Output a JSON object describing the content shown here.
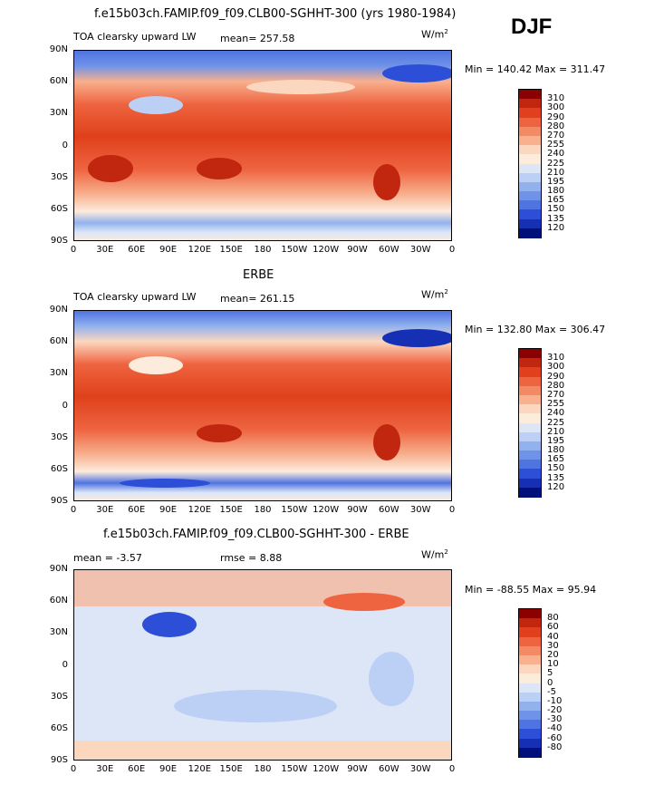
{
  "season": "DJF",
  "panels": [
    {
      "title": "f.e15b03ch.FAMIP.f09_f09.CLB00-SGHHT-300 (yrs 1980-1984)",
      "variable": "TOA clearsky upward LW",
      "stat_left": "mean=  257.58",
      "stat_mid": "",
      "units": "W/m",
      "units_sup": "2",
      "minmax": "Min = 140.42 Max = 311.47",
      "levels": [
        "310",
        "300",
        "290",
        "280",
        "270",
        "255",
        "240",
        "225",
        "210",
        "195",
        "180",
        "165",
        "150",
        "135",
        "120"
      ],
      "colors": [
        "#8b0000",
        "#c1260e",
        "#e0401c",
        "#ee6440",
        "#f48a64",
        "#f8b08e",
        "#fcd7bf",
        "#fdebdc",
        "#dce6f7",
        "#bcd0f5",
        "#92b2ee",
        "#6f93e8",
        "#4f73e0",
        "#2d4fd8",
        "#1530b5",
        "#00107a"
      ],
      "map_style": "model"
    },
    {
      "title": "ERBE",
      "variable": "TOA clearsky upward LW",
      "stat_left": "mean=  261.15",
      "stat_mid": "",
      "units": "W/m",
      "units_sup": "2",
      "minmax": "Min = 132.80 Max = 306.47",
      "levels": [
        "310",
        "300",
        "290",
        "280",
        "270",
        "255",
        "240",
        "225",
        "210",
        "195",
        "180",
        "165",
        "150",
        "135",
        "120"
      ],
      "colors": [
        "#8b0000",
        "#c1260e",
        "#e0401c",
        "#ee6440",
        "#f48a64",
        "#f8b08e",
        "#fcd7bf",
        "#fdebdc",
        "#dce6f7",
        "#bcd0f5",
        "#92b2ee",
        "#6f93e8",
        "#4f73e0",
        "#2d4fd8",
        "#1530b5",
        "#00107a"
      ],
      "map_style": "obs"
    },
    {
      "title": "f.e15b03ch.FAMIP.f09_f09.CLB00-SGHHT-300 - ERBE",
      "variable": "",
      "stat_left": "mean =   -3.57",
      "stat_mid": "rmse =    8.88",
      "units": "W/m",
      "units_sup": "2",
      "minmax": "Min = -88.55 Max =  95.94",
      "levels": [
        "80",
        "60",
        "40",
        "30",
        "20",
        "10",
        "5",
        "0",
        "-5",
        "-10",
        "-20",
        "-30",
        "-40",
        "-60",
        "-80"
      ],
      "colors": [
        "#8b0000",
        "#c1260e",
        "#e0401c",
        "#ee6440",
        "#f48a64",
        "#f8b08e",
        "#fcd7bf",
        "#fdebdc",
        "#dce6f7",
        "#bcd0f5",
        "#92b2ee",
        "#6f93e8",
        "#4f73e0",
        "#2d4fd8",
        "#1530b5",
        "#00107a"
      ],
      "map_style": "diff"
    }
  ],
  "lat_ticks": [
    "90N",
    "60N",
    "30N",
    "0",
    "30S",
    "60S",
    "90S"
  ],
  "lon_ticks": [
    "0",
    "30E",
    "60E",
    "90E",
    "120E",
    "150E",
    "180",
    "150W",
    "120W",
    "90W",
    "60W",
    "30W",
    "0"
  ]
}
